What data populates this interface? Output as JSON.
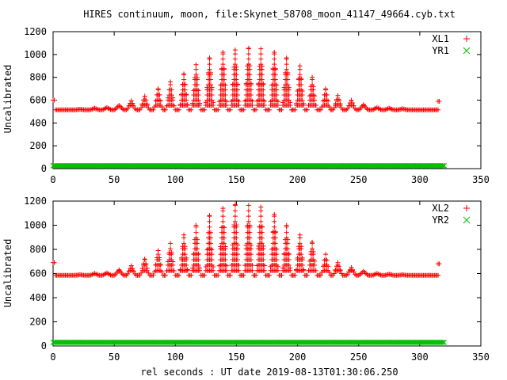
{
  "title": "HIRES continuum, moon, file:Skynet_58708_moon_41147_49664.cyb.txt",
  "xlabel": "rel seconds : UT date 2019-08-13T01:30:06.250",
  "colors": {
    "plus_series": "#ff0000",
    "x_series": "#00c000"
  },
  "chart_data": [
    {
      "type": "scatter",
      "ylabel": "Uncalibrated",
      "xlim": [
        0,
        350
      ],
      "ylim": [
        0,
        1200
      ],
      "x_ticks": [
        "0",
        "50",
        "100",
        "150",
        "200",
        "250",
        "300",
        "350"
      ],
      "y_ticks": [
        "0",
        "200",
        "400",
        "600",
        "800",
        "1000",
        "1200"
      ],
      "legend_position": "top-right",
      "series": [
        {
          "name": "XL1",
          "marker": "plus",
          "baseline": 515,
          "sample_step": 1,
          "x_range": [
            0,
            318
          ],
          "peak_centers": [
            22,
            34,
            44,
            54,
            64,
            75,
            86,
            96,
            107,
            117,
            128,
            139,
            149,
            160,
            170,
            181,
            191,
            202,
            212,
            223,
            233,
            244,
            254,
            265,
            275,
            286
          ],
          "peak_maxima": [
            520,
            530,
            535,
            555,
            595,
            635,
            700,
            760,
            830,
            910,
            970,
            1020,
            1040,
            1055,
            1050,
            1020,
            970,
            900,
            800,
            700,
            640,
            600,
            560,
            535,
            530,
            525
          ],
          "edge_points": [
            {
              "x": 0,
              "y": 600
            },
            {
              "x": 1,
              "y": 600
            },
            {
              "x": 315,
              "y": 590
            },
            {
              "x": 316,
              "y": 590
            }
          ]
        },
        {
          "name": "YR1",
          "marker": "x",
          "constant": 25,
          "sample_step": 1,
          "x_range": [
            0,
            320
          ]
        }
      ]
    },
    {
      "type": "scatter",
      "ylabel": "Uncalibrated",
      "xlim": [
        0,
        350
      ],
      "ylim": [
        0,
        1200
      ],
      "x_ticks": [
        "0",
        "50",
        "100",
        "150",
        "200",
        "250",
        "300",
        "350"
      ],
      "y_ticks": [
        "0",
        "200",
        "400",
        "600",
        "800",
        "1000",
        "1200"
      ],
      "legend_position": "top-right",
      "series": [
        {
          "name": "XL2",
          "marker": "plus",
          "baseline": 585,
          "sample_step": 1,
          "x_range": [
            0,
            318
          ],
          "peak_centers": [
            22,
            34,
            44,
            54,
            64,
            75,
            86,
            96,
            107,
            117,
            128,
            139,
            149,
            160,
            170,
            181,
            191,
            202,
            212,
            223,
            233,
            244,
            254,
            265,
            275,
            286
          ],
          "peak_maxima": [
            590,
            600,
            605,
            630,
            665,
            720,
            790,
            850,
            920,
            1000,
            1080,
            1140,
            1170,
            1165,
            1150,
            1090,
            1000,
            920,
            860,
            760,
            690,
            650,
            620,
            600,
            595,
            590
          ],
          "edge_points": [
            {
              "x": 0,
              "y": 690
            },
            {
              "x": 1,
              "y": 690
            },
            {
              "x": 315,
              "y": 680
            },
            {
              "x": 316,
              "y": 680
            }
          ]
        },
        {
          "name": "YR2",
          "marker": "x",
          "constant": 30,
          "sample_step": 1,
          "x_range": [
            0,
            320
          ]
        }
      ]
    }
  ]
}
